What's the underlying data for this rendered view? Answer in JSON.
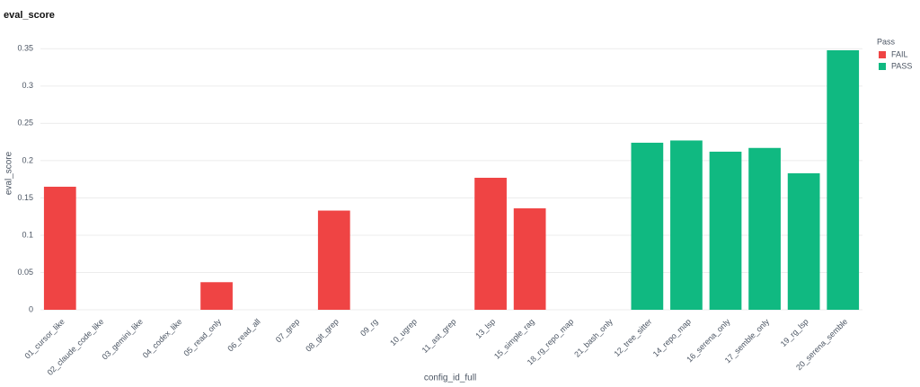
{
  "chart_data": {
    "type": "bar",
    "title": "eval_score",
    "x_label": "config_id_full",
    "y_label": "eval_score",
    "legend_title": "Pass",
    "categories": [
      "01_cursor_like",
      "02_claude_code_like",
      "03_gemini_like",
      "04_codex_like",
      "05_read_only",
      "06_read_all",
      "07_grep",
      "08_git_grep",
      "09_rg",
      "10_ugrep",
      "11_ast_grep",
      "13_lsp",
      "15_simple_rag",
      "18_rg_repo_map",
      "21_bash_only",
      "12_tree_sitter",
      "14_repo_map",
      "16_serena_only",
      "17_semble_only",
      "19_rg_lsp",
      "20_serena_semble"
    ],
    "series": [
      {
        "name": "FAIL",
        "color": "#ef4444",
        "values": [
          0.165,
          0,
          0,
          0,
          0.037,
          0,
          0,
          0.133,
          0,
          0,
          0,
          0.177,
          0.136,
          0,
          0,
          null,
          null,
          null,
          null,
          null,
          null
        ]
      },
      {
        "name": "PASS",
        "color": "#10b981",
        "values": [
          null,
          null,
          null,
          null,
          null,
          null,
          null,
          null,
          null,
          null,
          null,
          null,
          null,
          null,
          null,
          0.224,
          0.227,
          0.212,
          0.217,
          0.183,
          0.348
        ]
      }
    ],
    "ylim": [
      0,
      0.366
    ],
    "yticks": [
      0,
      0.05,
      0.1,
      0.15,
      0.2,
      0.25,
      0.3,
      0.35
    ],
    "grid": true,
    "legend": "right"
  }
}
